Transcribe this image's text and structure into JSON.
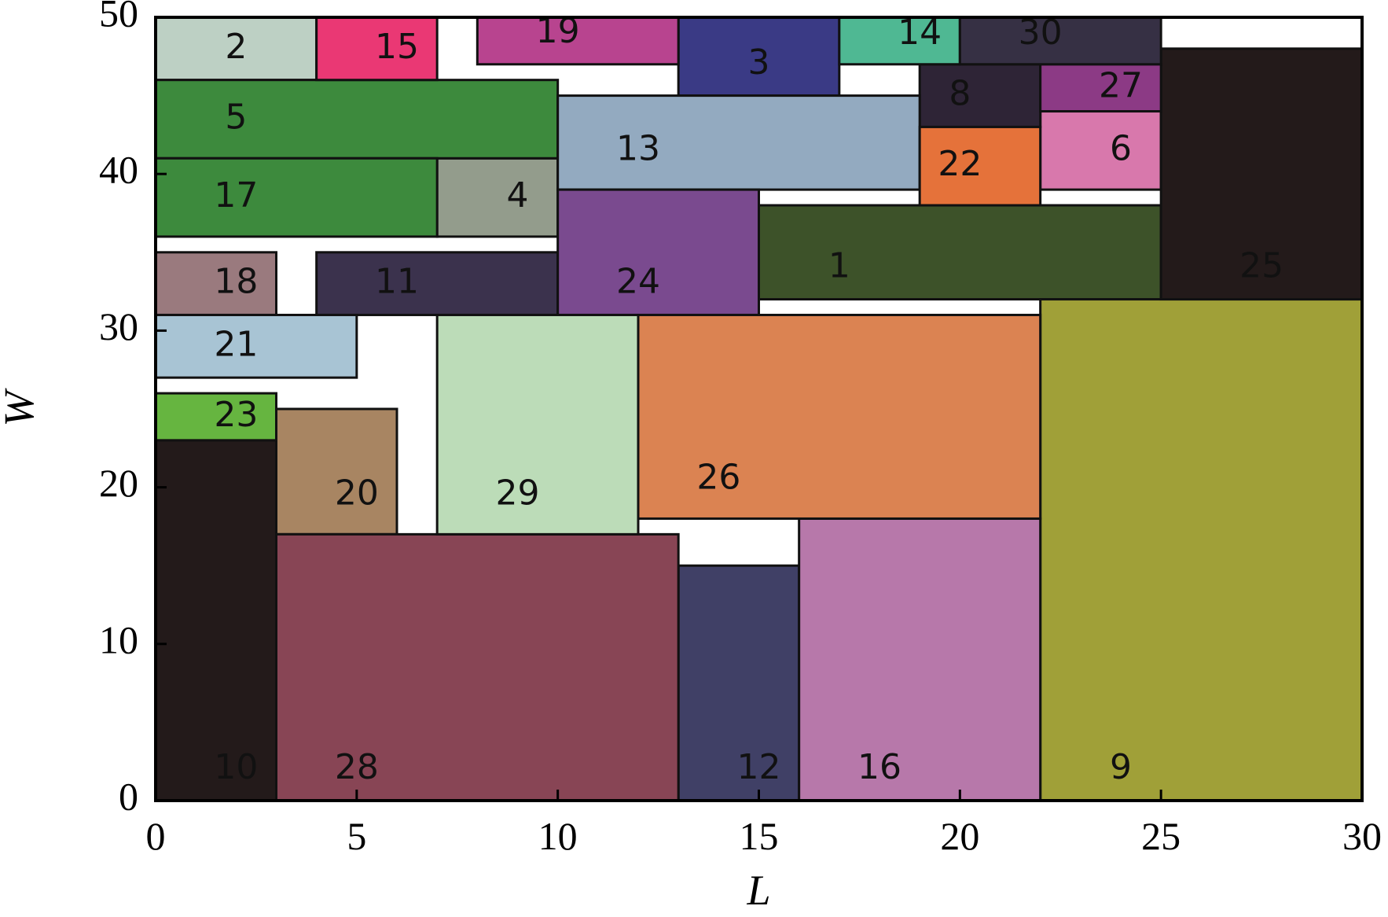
{
  "chart_data": {
    "type": "packing-layout",
    "xlabel": "L",
    "ylabel": "W",
    "xlim": [
      0,
      30
    ],
    "ylim": [
      0,
      50
    ],
    "xticks": [
      0,
      5,
      10,
      15,
      20,
      25,
      30
    ],
    "yticks": [
      0,
      10,
      20,
      30,
      40,
      50
    ],
    "grid": false,
    "rects": [
      {
        "id": "1",
        "x": 15,
        "y": 32,
        "w": 10,
        "h": 6,
        "color": "#3d5229"
      },
      {
        "id": "2",
        "x": 0,
        "y": 46,
        "w": 4,
        "h": 4,
        "color": "#bdd0c4"
      },
      {
        "id": "3",
        "x": 13,
        "y": 45,
        "w": 4,
        "h": 5,
        "color": "#3a3a85"
      },
      {
        "id": "4",
        "x": 7,
        "y": 36,
        "w": 3,
        "h": 5,
        "color": "#939c8c"
      },
      {
        "id": "5",
        "x": 0,
        "y": 41,
        "w": 10,
        "h": 5,
        "color": "#3d8a3d"
      },
      {
        "id": "6",
        "x": 22,
        "y": 39,
        "w": 3,
        "h": 5,
        "color": "#d878ac"
      },
      {
        "id": "8",
        "x": 19,
        "y": 43,
        "w": 3,
        "h": 4,
        "color": "#2e2436"
      },
      {
        "id": "9",
        "x": 22,
        "y": 0,
        "w": 8,
        "h": 32,
        "color": "#a0a038"
      },
      {
        "id": "10",
        "x": 0,
        "y": 0,
        "w": 3,
        "h": 23,
        "color": "#231a1a"
      },
      {
        "id": "11",
        "x": 4,
        "y": 31,
        "w": 6,
        "h": 4,
        "color": "#3b324d"
      },
      {
        "id": "12",
        "x": 13,
        "y": 0,
        "w": 3,
        "h": 15,
        "color": "#404066"
      },
      {
        "id": "13",
        "x": 10,
        "y": 39,
        "w": 9,
        "h": 6,
        "color": "#93aac0"
      },
      {
        "id": "14",
        "x": 17,
        "y": 47,
        "w": 3,
        "h": 3,
        "color": "#4fb893"
      },
      {
        "id": "15",
        "x": 4,
        "y": 46,
        "w": 3,
        "h": 4,
        "color": "#ea3874"
      },
      {
        "id": "16",
        "x": 16,
        "y": 0,
        "w": 6,
        "h": 18,
        "color": "#b778aa"
      },
      {
        "id": "17",
        "x": 0,
        "y": 36,
        "w": 7,
        "h": 5,
        "color": "#3d8a3d"
      },
      {
        "id": "18",
        "x": 0,
        "y": 31,
        "w": 3,
        "h": 4,
        "color": "#9a7a7e"
      },
      {
        "id": "19",
        "x": 8,
        "y": 47,
        "w": 5,
        "h": 3,
        "color": "#b8448f"
      },
      {
        "id": "20",
        "x": 3,
        "y": 17,
        "w": 3,
        "h": 8,
        "color": "#a88562"
      },
      {
        "id": "21",
        "x": 0,
        "y": 27,
        "w": 5,
        "h": 4,
        "color": "#a8c4d4"
      },
      {
        "id": "22",
        "x": 19,
        "y": 38,
        "w": 3,
        "h": 5,
        "color": "#e5723a"
      },
      {
        "id": "23",
        "x": 0,
        "y": 23,
        "w": 3,
        "h": 3,
        "color": "#66b540"
      },
      {
        "id": "24",
        "x": 10,
        "y": 31,
        "w": 5,
        "h": 8,
        "color": "#7a4a8f"
      },
      {
        "id": "25",
        "x": 25,
        "y": 32,
        "w": 5,
        "h": 16,
        "color": "#231a1a"
      },
      {
        "id": "26",
        "x": 12,
        "y": 18,
        "w": 10,
        "h": 13,
        "color": "#db8352"
      },
      {
        "id": "27",
        "x": 22,
        "y": 44,
        "w": 3,
        "h": 3,
        "color": "#8c3a85"
      },
      {
        "id": "28",
        "x": 3,
        "y": 0,
        "w": 10,
        "h": 17,
        "color": "#884555"
      },
      {
        "id": "29",
        "x": 7,
        "y": 17,
        "w": 5,
        "h": 14,
        "color": "#bcdcb8"
      },
      {
        "id": "30",
        "x": 20,
        "y": 47,
        "w": 5,
        "h": 3,
        "color": "#363044"
      }
    ],
    "labels": [
      {
        "text": "1",
        "x": 17,
        "y": 34
      },
      {
        "text": "2",
        "x": 2,
        "y": 48
      },
      {
        "text": "3",
        "x": 15,
        "y": 47
      },
      {
        "text": "4",
        "x": 9,
        "y": 38.5
      },
      {
        "text": "5",
        "x": 2,
        "y": 43.5
      },
      {
        "text": "6",
        "x": 24,
        "y": 41.5
      },
      {
        "text": "8",
        "x": 20,
        "y": 45
      },
      {
        "text": "9",
        "x": 24,
        "y": 2
      },
      {
        "text": "10",
        "x": 2,
        "y": 2
      },
      {
        "text": "11",
        "x": 6,
        "y": 33
      },
      {
        "text": "12",
        "x": 15,
        "y": 2
      },
      {
        "text": "13",
        "x": 12,
        "y": 41.5
      },
      {
        "text": "14",
        "x": 19,
        "y": 48.9
      },
      {
        "text": "15",
        "x": 6,
        "y": 48
      },
      {
        "text": "16",
        "x": 18,
        "y": 2
      },
      {
        "text": "17",
        "x": 2,
        "y": 38.5
      },
      {
        "text": "18",
        "x": 2,
        "y": 33
      },
      {
        "text": "19",
        "x": 10,
        "y": 49
      },
      {
        "text": "20",
        "x": 5,
        "y": 19.5
      },
      {
        "text": "21",
        "x": 2,
        "y": 29
      },
      {
        "text": "22",
        "x": 20,
        "y": 40.5
      },
      {
        "text": "23",
        "x": 2,
        "y": 24.5
      },
      {
        "text": "24",
        "x": 12,
        "y": 33
      },
      {
        "text": "25",
        "x": 27.5,
        "y": 34
      },
      {
        "text": "26",
        "x": 14,
        "y": 20.5
      },
      {
        "text": "27",
        "x": 24,
        "y": 45.5
      },
      {
        "text": "28",
        "x": 5,
        "y": 2
      },
      {
        "text": "29",
        "x": 9,
        "y": 19.5
      },
      {
        "text": "30",
        "x": 22,
        "y": 48.9
      }
    ]
  }
}
